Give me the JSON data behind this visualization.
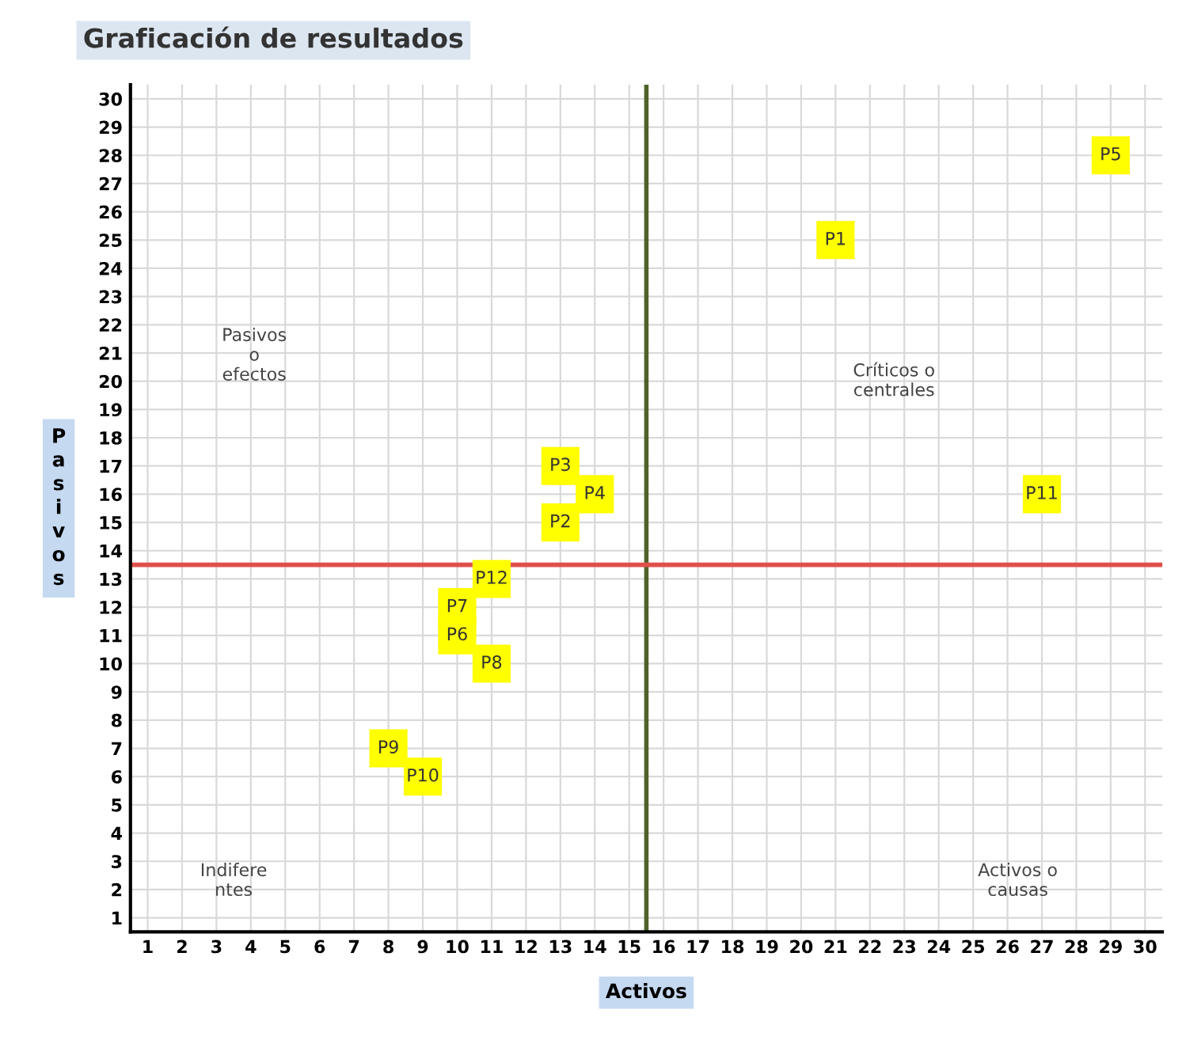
{
  "chart_data": {
    "type": "scatter",
    "title": "Graficación de resultados",
    "xlabel": "Activos",
    "ylabel": "Pasivos",
    "x": [
      21,
      13,
      13,
      14,
      29,
      10,
      10,
      11,
      8,
      9,
      27,
      11
    ],
    "series": [
      {
        "color": "#ffff00",
        "values": [
          25,
          15,
          17,
          16,
          28,
          11,
          12,
          10,
          7,
          6,
          16,
          13
        ],
        "value_labels": [
          "P1",
          "P2",
          "P3",
          "P4",
          "P5",
          "P6",
          "P7",
          "P8",
          "P9",
          "P10",
          "P11",
          "P12"
        ]
      }
    ],
    "marker": "square",
    "xlim": [
      0.5,
      30.5
    ],
    "ylim": [
      0.5,
      30.5
    ],
    "xticks": [
      1,
      2,
      3,
      4,
      5,
      6,
      7,
      8,
      9,
      10,
      11,
      12,
      13,
      14,
      15,
      16,
      17,
      18,
      19,
      20,
      21,
      22,
      23,
      24,
      25,
      26,
      27,
      28,
      29,
      30
    ],
    "yticks": [
      1,
      2,
      3,
      4,
      5,
      6,
      7,
      8,
      9,
      10,
      11,
      12,
      13,
      14,
      15,
      16,
      17,
      18,
      19,
      20,
      21,
      22,
      23,
      24,
      25,
      26,
      27,
      28,
      29,
      30
    ],
    "ref_lines": [
      {
        "axis": "x",
        "value": 15.5,
        "color": "#4f6228"
      },
      {
        "axis": "y",
        "value": 13.5,
        "color": "#e0504a"
      }
    ],
    "annotations": [
      "Pasivos\no\nefectos",
      "Críticos o\ncentrales",
      "Indifere\nntes",
      "Activos o\ncausas"
    ],
    "grid": true
  }
}
